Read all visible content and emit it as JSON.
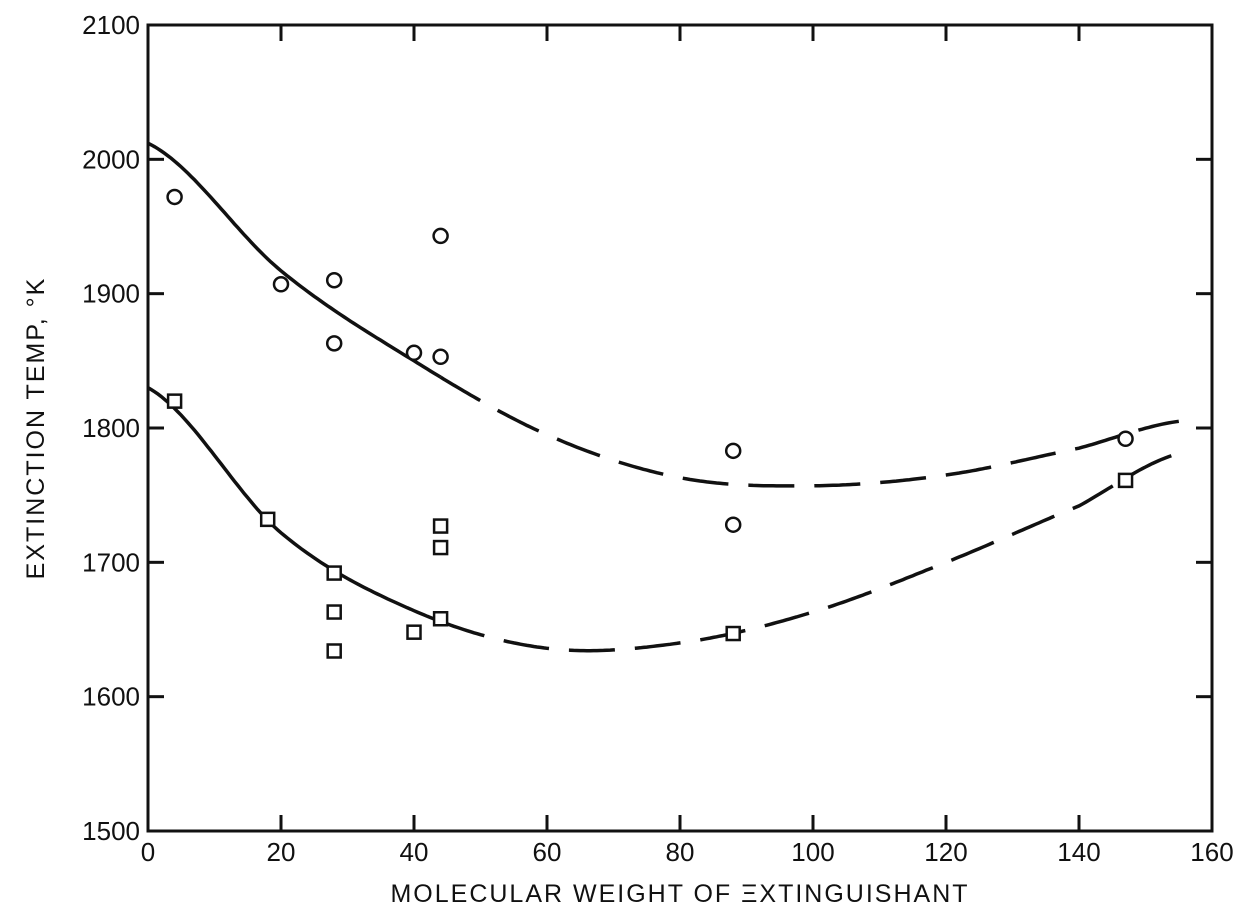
{
  "chart_data": {
    "type": "scatter",
    "title": "",
    "xlabel": "MOLECULAR WEIGHT OF ΞXTINGUISHANT",
    "ylabel": "EXTINCTION TEMP, °K",
    "xlim": [
      0,
      160
    ],
    "ylim": [
      1500,
      2100
    ],
    "x_ticks": [
      "0",
      "20",
      "40",
      "60",
      "80",
      "100",
      "120",
      "140",
      "160"
    ],
    "y_ticks": [
      "1500",
      "1600",
      "1700",
      "1800",
      "1900",
      "2000",
      "2100"
    ],
    "grid": false,
    "legend": "none",
    "series": [
      {
        "marker": "circle",
        "points": [
          [
            4,
            1972
          ],
          [
            20,
            1907
          ],
          [
            28,
            1910
          ],
          [
            28,
            1863
          ],
          [
            40,
            1856
          ],
          [
            44,
            1943
          ],
          [
            44,
            1853
          ],
          [
            88,
            1783
          ],
          [
            88,
            1728
          ],
          [
            147,
            1792
          ]
        ],
        "curve": [
          [
            0,
            2012
          ],
          [
            20,
            1917
          ],
          [
            40,
            1850
          ],
          [
            60,
            1795
          ],
          [
            80,
            1763
          ],
          [
            100,
            1757
          ],
          [
            120,
            1765
          ],
          [
            140,
            1785
          ],
          [
            155,
            1805
          ]
        ],
        "curve_solid_until_x": 44
      },
      {
        "marker": "square",
        "points": [
          [
            4,
            1820
          ],
          [
            18,
            1732
          ],
          [
            28,
            1692
          ],
          [
            28,
            1663
          ],
          [
            28,
            1634
          ],
          [
            40,
            1648
          ],
          [
            44,
            1727
          ],
          [
            44,
            1711
          ],
          [
            44,
            1658
          ],
          [
            88,
            1647
          ],
          [
            147,
            1761
          ]
        ],
        "curve": [
          [
            0,
            1830
          ],
          [
            20,
            1722
          ],
          [
            40,
            1664
          ],
          [
            60,
            1636
          ],
          [
            80,
            1640
          ],
          [
            100,
            1663
          ],
          [
            120,
            1700
          ],
          [
            140,
            1742
          ],
          [
            155,
            1781
          ]
        ],
        "curve_solid_until_x": 44
      }
    ]
  }
}
